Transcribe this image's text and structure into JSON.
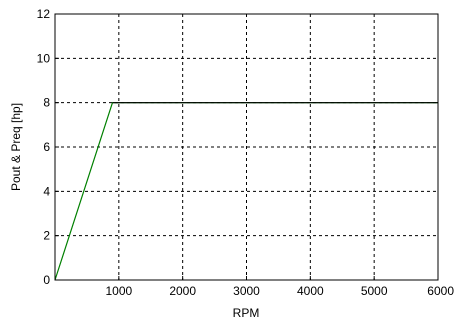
{
  "chart_data": {
    "type": "line",
    "title": "",
    "xlabel": "RPM",
    "ylabel": "Pout & Preq [hp]",
    "xlim": [
      0,
      6000
    ],
    "ylim": [
      0,
      12
    ],
    "x_ticks": [
      1000,
      2000,
      3000,
      4000,
      5000,
      6000
    ],
    "y_ticks": [
      0,
      2,
      4,
      6,
      8,
      10,
      12
    ],
    "grid": true,
    "grid_style": "dashed",
    "legend": "none",
    "series": [
      {
        "color": "#008000",
        "x": [
          0,
          900,
          6000
        ],
        "y": [
          0,
          8,
          8
        ]
      },
      {
        "color": "#000000",
        "x": [
          900,
          6000
        ],
        "y": [
          8,
          8
        ]
      }
    ]
  }
}
